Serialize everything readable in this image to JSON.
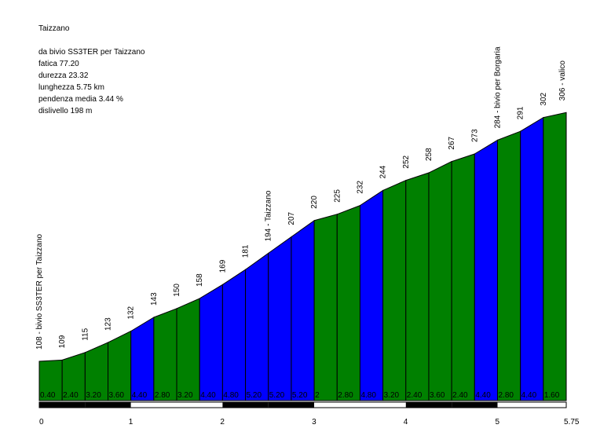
{
  "info": {
    "title": "Taizzano",
    "lines": [
      "da bivio SS3TER per Taizzano",
      "fatica 77.20",
      "durezza 23.32",
      "lunghezza 5.75 km",
      "pendenza media 3.44 %",
      "dislivello 198 m"
    ]
  },
  "colors": {
    "easy": "#008000",
    "hard": "#0000ff",
    "stroke": "#000000"
  },
  "chart_data": {
    "type": "area",
    "title": "Taizzano",
    "xlabel": "",
    "ylabel": "",
    "xlim": [
      0,
      5.75
    ],
    "ylim": [
      100,
      310
    ],
    "x_ticks": [
      "0",
      "1",
      "2",
      "3",
      "4",
      "5",
      "5.75"
    ],
    "points": [
      {
        "x": 0.0,
        "alt": 108,
        "label": "108 - bivio SS3TER per Taizzano"
      },
      {
        "x": 0.25,
        "alt": 109,
        "label": "109"
      },
      {
        "x": 0.5,
        "alt": 115,
        "label": "115"
      },
      {
        "x": 0.75,
        "alt": 123,
        "label": "123"
      },
      {
        "x": 1.0,
        "alt": 132,
        "label": "132"
      },
      {
        "x": 1.25,
        "alt": 143,
        "label": "143"
      },
      {
        "x": 1.5,
        "alt": 150,
        "label": "150"
      },
      {
        "x": 1.75,
        "alt": 158,
        "label": "158"
      },
      {
        "x": 2.0,
        "alt": 169,
        "label": "169"
      },
      {
        "x": 2.25,
        "alt": 181,
        "label": "181"
      },
      {
        "x": 2.5,
        "alt": 194,
        "label": "194 - Taizzano"
      },
      {
        "x": 2.75,
        "alt": 207,
        "label": "207"
      },
      {
        "x": 3.0,
        "alt": 220,
        "label": "220"
      },
      {
        "x": 3.25,
        "alt": 225,
        "label": "225"
      },
      {
        "x": 3.5,
        "alt": 232,
        "label": "232"
      },
      {
        "x": 3.75,
        "alt": 244,
        "label": "244"
      },
      {
        "x": 4.0,
        "alt": 252,
        "label": "252"
      },
      {
        "x": 4.25,
        "alt": 258,
        "label": "258"
      },
      {
        "x": 4.5,
        "alt": 267,
        "label": "267"
      },
      {
        "x": 4.75,
        "alt": 273,
        "label": "273"
      },
      {
        "x": 5.0,
        "alt": 284,
        "label": "284 - bivio per Borgaria"
      },
      {
        "x": 5.25,
        "alt": 291,
        "label": "291"
      },
      {
        "x": 5.5,
        "alt": 302,
        "label": "302"
      },
      {
        "x": 5.75,
        "alt": 306,
        "label": "306 - valico"
      }
    ],
    "segments": [
      {
        "grade": "0.40",
        "level": "easy"
      },
      {
        "grade": "2.40",
        "level": "easy"
      },
      {
        "grade": "3.20",
        "level": "easy"
      },
      {
        "grade": "3.60",
        "level": "easy"
      },
      {
        "grade": "4.40",
        "level": "hard"
      },
      {
        "grade": "2.80",
        "level": "easy"
      },
      {
        "grade": "3.20",
        "level": "easy"
      },
      {
        "grade": "4.40",
        "level": "hard"
      },
      {
        "grade": "4.80",
        "level": "hard"
      },
      {
        "grade": "5.20",
        "level": "hard"
      },
      {
        "grade": "5.20",
        "level": "hard"
      },
      {
        "grade": "5.20",
        "level": "hard"
      },
      {
        "grade": "2",
        "level": "easy"
      },
      {
        "grade": "2.80",
        "level": "easy"
      },
      {
        "grade": "4.80",
        "level": "hard"
      },
      {
        "grade": "3.20",
        "level": "easy"
      },
      {
        "grade": "2.40",
        "level": "easy"
      },
      {
        "grade": "3.60",
        "level": "easy"
      },
      {
        "grade": "2.40",
        "level": "easy"
      },
      {
        "grade": "4.40",
        "level": "hard"
      },
      {
        "grade": "2.80",
        "level": "easy"
      },
      {
        "grade": "4.40",
        "level": "hard"
      },
      {
        "grade": "1.60",
        "level": "easy"
      }
    ]
  }
}
